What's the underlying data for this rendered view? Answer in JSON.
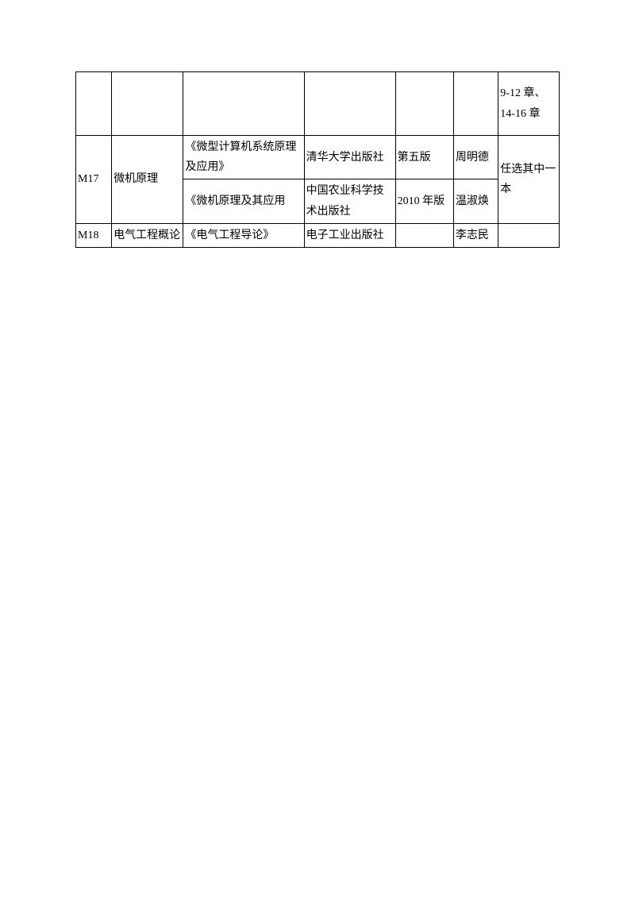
{
  "table": {
    "rows": [
      {
        "col7": "9-12 章、14-16 章"
      },
      {
        "col1": "M17",
        "col2": "微机原理",
        "sub1": {
          "col3": "《微型计算机系统原理及应用》",
          "col4": "清华大学出版社",
          "col5": "第五版",
          "col6": "周明德"
        },
        "sub2": {
          "col3": "《微机原理及其应用",
          "col4": "中国农业科学技术出版社",
          "col5": "2010 年版",
          "col6": "温淑焕"
        },
        "col7": "任选其中一本"
      },
      {
        "col1": "M18",
        "col2": "电气工程概论",
        "col3": "《电气工程导论》",
        "col4": "电子工业出版社",
        "col5": "",
        "col6": "李志民",
        "col7": ""
      }
    ]
  }
}
